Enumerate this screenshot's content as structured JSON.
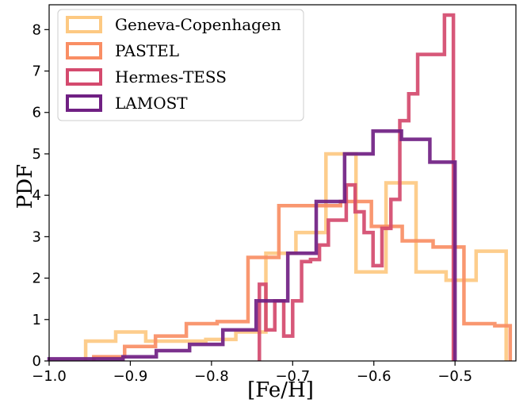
{
  "chart_data": {
    "type": "histogram",
    "title": "",
    "xlabel": "[Fe/H]",
    "ylabel": "PDF",
    "xlim": [
      -1.0,
      -0.425
    ],
    "ylim": [
      0,
      8.6
    ],
    "xticks": [
      -1.0,
      -0.9,
      -0.8,
      -0.7,
      -0.6,
      -0.5
    ],
    "xtick_labels": [
      "−1.0",
      "−0.9",
      "−0.8",
      "−0.7",
      "−0.6",
      "−0.5"
    ],
    "yticks": [
      0,
      1,
      2,
      3,
      4,
      5,
      6,
      7,
      8
    ],
    "ytick_labels": [
      "0",
      "1",
      "2",
      "3",
      "4",
      "5",
      "6",
      "7",
      "8"
    ],
    "grid": false,
    "legend_position": "top-left",
    "series": [
      {
        "name": "Geneva-Copenhagen",
        "color": "#fdc982",
        "edges": [
          -0.955,
          -0.918,
          -0.881,
          -0.844,
          -0.807,
          -0.77,
          -0.733,
          -0.696,
          -0.659,
          -0.622,
          -0.585,
          -0.548,
          -0.511,
          -0.474,
          -0.437
        ],
        "values": [
          0.48,
          0.7,
          0.48,
          0.48,
          0.52,
          0.7,
          2.6,
          3.1,
          5.0,
          2.15,
          4.3,
          2.15,
          1.95,
          2.65
        ]
      },
      {
        "name": "PASTEL",
        "color": "#f98e64",
        "edges": [
          -0.945,
          -0.907,
          -0.869,
          -0.831,
          -0.793,
          -0.755,
          -0.717,
          -0.679,
          -0.641,
          -0.603,
          -0.565,
          -0.527,
          -0.489,
          -0.451,
          -0.432
        ],
        "values": [
          0.1,
          0.35,
          0.6,
          0.9,
          0.95,
          2.5,
          3.75,
          3.75,
          3.85,
          3.25,
          2.9,
          2.75,
          0.9,
          0.85
        ]
      },
      {
        "name": "Hermes-TESS",
        "color": "#d44a6e",
        "edges": [
          -0.741,
          -0.733,
          -0.722,
          -0.711,
          -0.7,
          -0.689,
          -0.678,
          -0.667,
          -0.656,
          -0.645,
          -0.634,
          -0.623,
          -0.612,
          -0.601,
          -0.59,
          -0.579,
          -0.568,
          -0.557,
          -0.546,
          -0.535,
          -0.524,
          -0.513,
          -0.502
        ],
        "values": [
          1.85,
          0.75,
          1.45,
          0.6,
          1.45,
          2.4,
          2.45,
          2.8,
          3.4,
          3.4,
          4.25,
          3.6,
          3.1,
          2.3,
          3.2,
          3.9,
          5.8,
          6.45,
          7.4,
          7.4,
          7.4,
          8.35
        ]
      },
      {
        "name": "LAMOST",
        "color": "#702083",
        "edges": [
          -1.0,
          -0.909,
          -0.868,
          -0.827,
          -0.786,
          -0.745,
          -0.706,
          -0.671,
          -0.636,
          -0.601,
          -0.566,
          -0.531,
          -0.5
        ],
        "values": [
          0.05,
          0.1,
          0.25,
          0.4,
          0.75,
          1.45,
          2.6,
          3.85,
          5.0,
          5.55,
          5.35,
          4.8
        ]
      }
    ]
  }
}
